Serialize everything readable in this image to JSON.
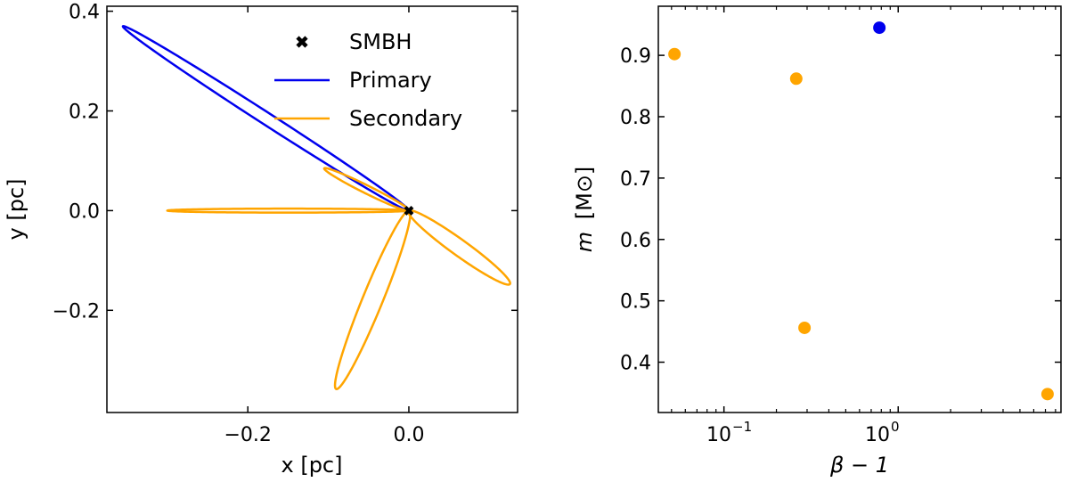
{
  "chart_data": [
    {
      "type": "line",
      "xlabel": "x [pc]",
      "ylabel": "y [pc]",
      "xlim": [
        -0.375,
        0.135
      ],
      "ylim": [
        -0.405,
        0.41
      ],
      "xticks": [
        -0.2,
        0.0
      ],
      "xtick_labels": [
        "−0.2",
        "0.0"
      ],
      "yticks": [
        -0.2,
        0.0,
        0.2,
        0.4
      ],
      "ytick_labels": [
        "−0.2",
        "0.0",
        "0.2",
        "0.4"
      ],
      "legend": {
        "placement": "top-right",
        "entries": [
          {
            "label": "SMBH",
            "marker": "X",
            "color": "#000000"
          },
          {
            "label": "Primary",
            "color": "#0000ee"
          },
          {
            "label": "Secondary",
            "color": "#ffa500"
          }
        ]
      },
      "smbh": {
        "x": 0.0,
        "y": 0.0
      },
      "series": [
        {
          "name": "Primary",
          "color": "#0000ee",
          "ellipse": {
            "apo": [
              -0.355,
              0.37
            ],
            "peri": [
              0.0,
              0.0
            ],
            "semi_minor": 0.01
          }
        },
        {
          "name": "Secondary",
          "color": "#ffa500",
          "ellipse": {
            "apo": [
              -0.3,
              0.0
            ],
            "peri": [
              0.0,
              0.0
            ],
            "semi_minor": 0.004
          }
        },
        {
          "name": "Secondary",
          "color": "#ffa500",
          "ellipse": {
            "apo": [
              -0.105,
              0.085
            ],
            "peri": [
              0.0,
              0.0
            ],
            "semi_minor": 0.007
          }
        },
        {
          "name": "Secondary",
          "color": "#ffa500",
          "ellipse": {
            "apo": [
              0.125,
              -0.148
            ],
            "peri": [
              0.0,
              0.0
            ],
            "semi_minor": 0.013
          }
        },
        {
          "name": "Secondary",
          "color": "#ffa500",
          "ellipse": {
            "apo": [
              -0.09,
              -0.358
            ],
            "peri": [
              0.0,
              0.0
            ],
            "semi_minor": 0.013
          }
        }
      ]
    },
    {
      "type": "scatter",
      "xscale": "log",
      "xlabel": "β − 1",
      "ylabel": "m [M⊙]",
      "ylabel_main": "m",
      "ylabel_unit": "[M⊙]",
      "xlim": [
        0.042,
        8.6
      ],
      "ylim": [
        0.318,
        0.98
      ],
      "xtick_labels": [
        {
          "base": "10",
          "exp": "−1",
          "value": 0.1
        },
        {
          "base": "10",
          "exp": "0",
          "value": 1.0
        }
      ],
      "yticks": [
        0.4,
        0.5,
        0.6,
        0.7,
        0.8,
        0.9
      ],
      "ytick_labels": [
        "0.4",
        "0.5",
        "0.6",
        "0.7",
        "0.8",
        "0.9"
      ],
      "points": [
        {
          "x": 0.78,
          "y": 0.945,
          "series": "Primary",
          "color": "#0000ee"
        },
        {
          "x": 0.052,
          "y": 0.902,
          "series": "Secondary",
          "color": "#ffa500"
        },
        {
          "x": 0.26,
          "y": 0.862,
          "series": "Secondary",
          "color": "#ffa500"
        },
        {
          "x": 0.29,
          "y": 0.456,
          "series": "Secondary",
          "color": "#ffa500"
        },
        {
          "x": 7.2,
          "y": 0.348,
          "series": "Secondary",
          "color": "#ffa500"
        }
      ]
    }
  ]
}
